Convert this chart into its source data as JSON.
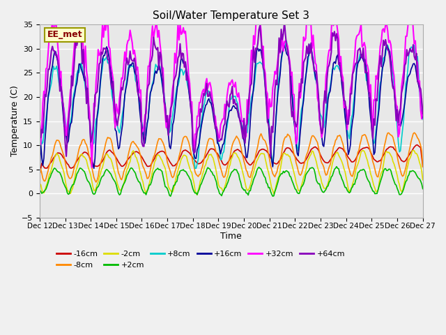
{
  "title": "Soil/Water Temperature Set 3",
  "xlabel": "Time",
  "ylabel": "Temperature (C)",
  "xlim_start": 0,
  "xlim_end": 360,
  "ylim": [
    -5,
    35
  ],
  "yticks": [
    -5,
    0,
    5,
    10,
    15,
    20,
    25,
    30,
    35
  ],
  "plot_bg": "#e8e8e8",
  "fig_bg": "#f0f0f0",
  "grid_color": "#ffffff",
  "annotation_text": "EE_met",
  "annotation_bg": "#ffffcc",
  "annotation_border": "#999900",
  "series": [
    {
      "label": "-16cm",
      "color": "#cc0000",
      "lw": 1.2
    },
    {
      "label": "-8cm",
      "color": "#ff8800",
      "lw": 1.2
    },
    {
      "label": "-2cm",
      "color": "#dddd00",
      "lw": 1.2
    },
    {
      "label": "+2cm",
      "color": "#00bb00",
      "lw": 1.2
    },
    {
      "label": "+8cm",
      "color": "#00cccc",
      "lw": 1.2
    },
    {
      "label": "+16cm",
      "color": "#000099",
      "lw": 1.2
    },
    {
      "label": "+32cm",
      "color": "#ff00ff",
      "lw": 1.5
    },
    {
      "label": "+64cm",
      "color": "#8800bb",
      "lw": 1.5
    }
  ],
  "xtick_labels": [
    "Dec 12",
    "Dec 13",
    "Dec 14",
    "Dec 15",
    "Dec 16",
    "Dec 17",
    "Dec 18",
    "Dec 19",
    "Dec 20",
    "Dec 21",
    "Dec 22",
    "Dec 23",
    "Dec 24",
    "Dec 25",
    "Dec 26",
    "Dec 27"
  ],
  "xtick_positions": [
    0,
    24,
    48,
    72,
    96,
    120,
    144,
    168,
    192,
    216,
    240,
    264,
    288,
    312,
    336,
    360
  ]
}
